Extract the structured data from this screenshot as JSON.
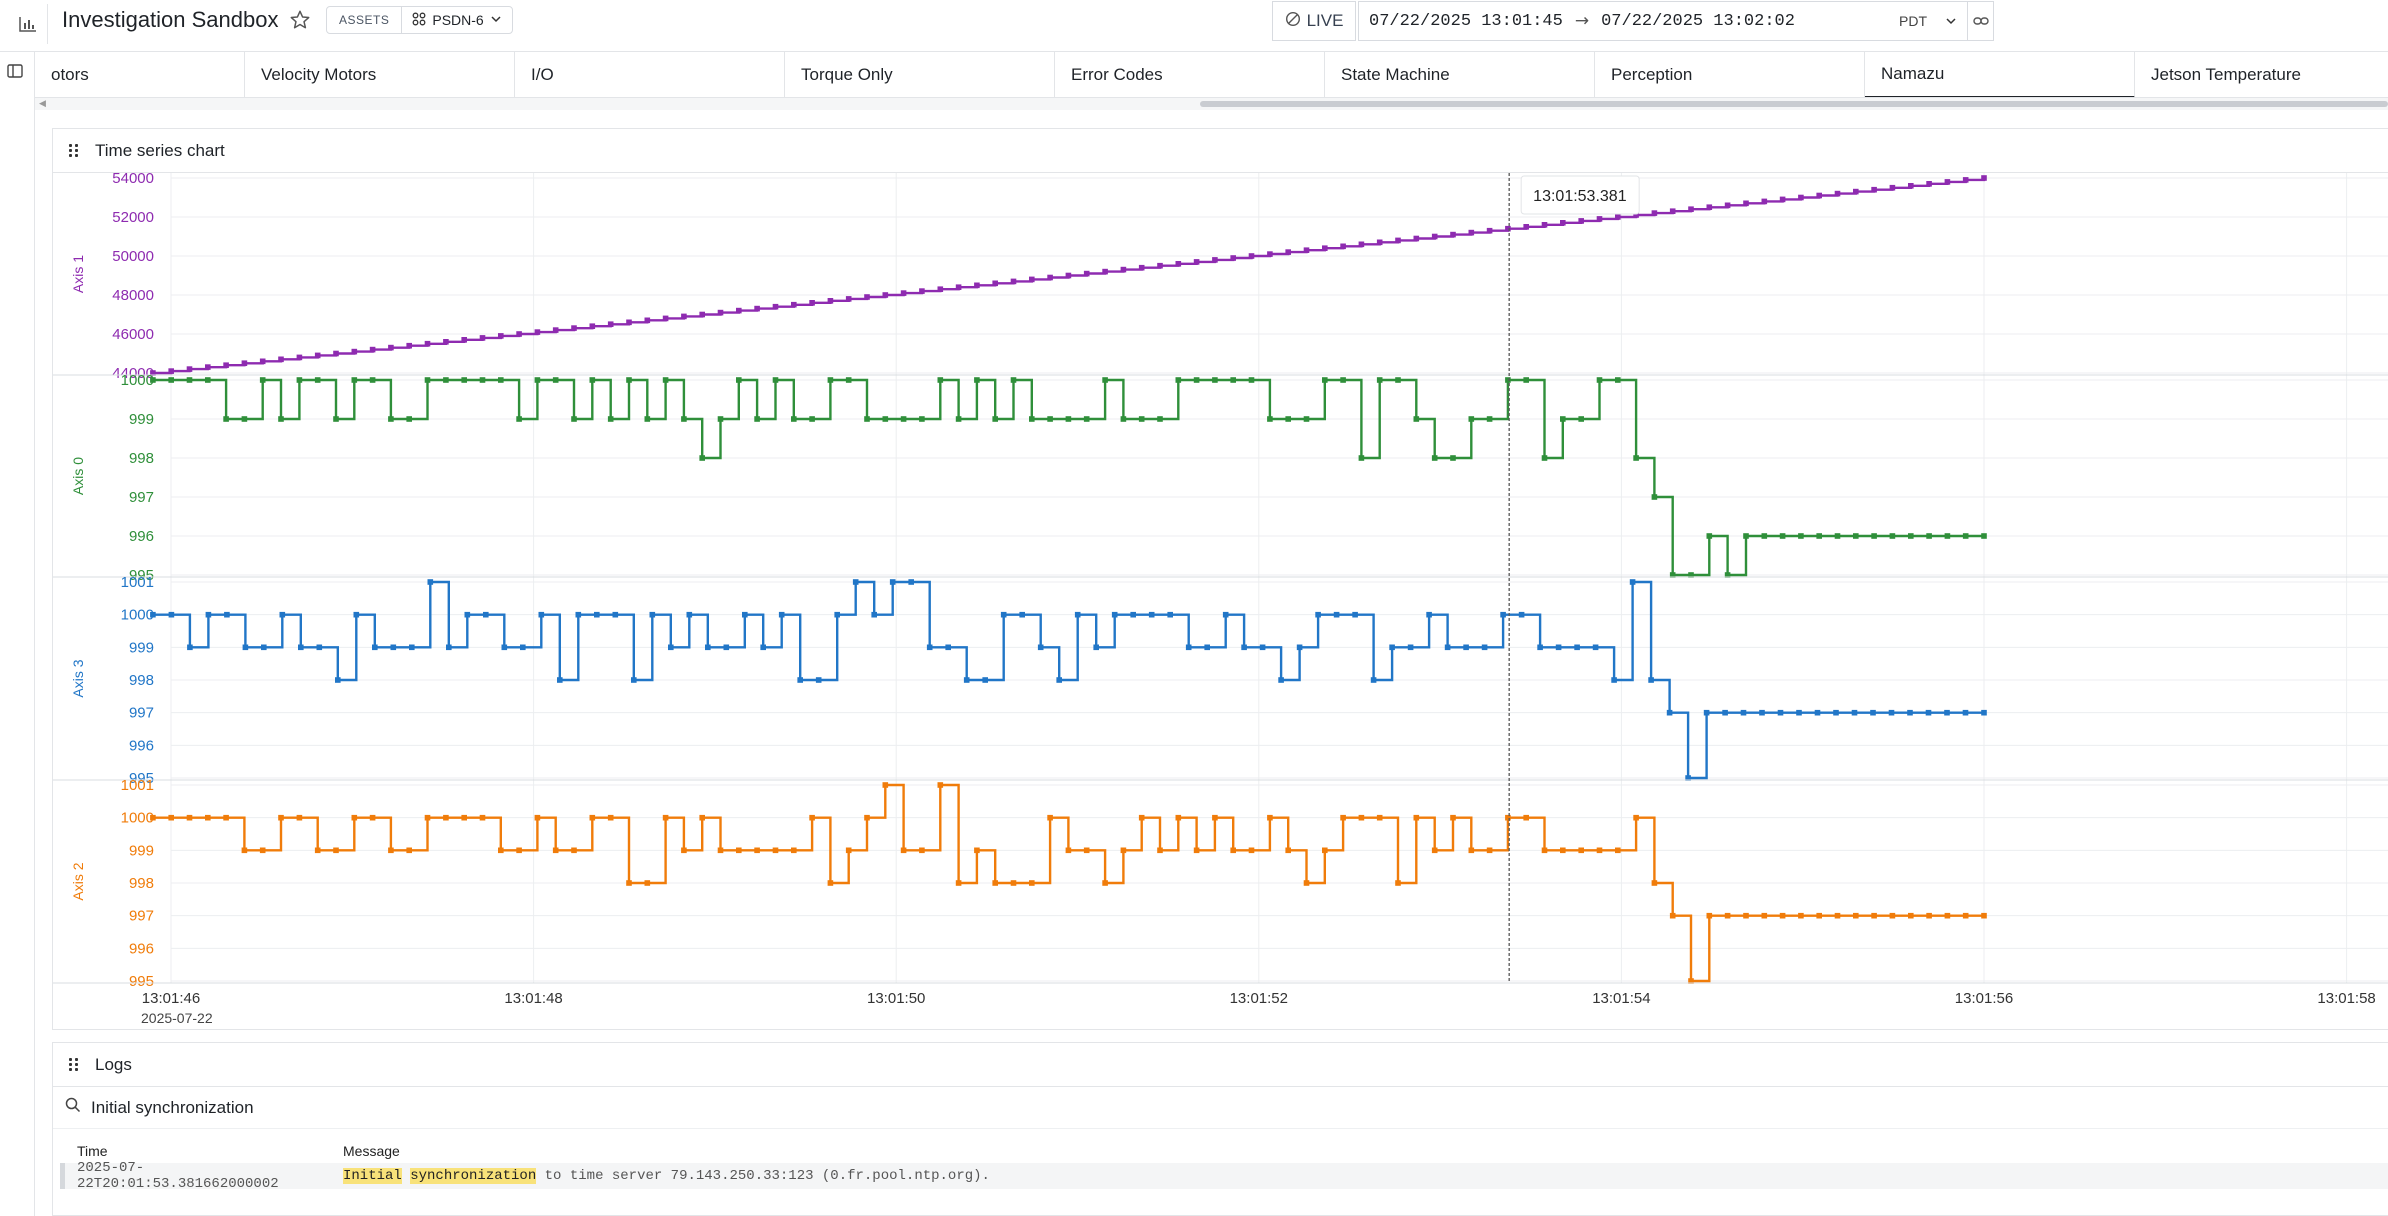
{
  "header": {
    "title": "Investigation Sandbox",
    "assets_label": "ASSETS",
    "asset_value": "PSDN-6",
    "live_label": "LIVE",
    "range_start": "07/22/2025 13:01:45",
    "range_end": "07/22/2025 13:02:02",
    "timezone": "PDT"
  },
  "tabs": [
    {
      "label": "otors"
    },
    {
      "label": "Velocity Motors"
    },
    {
      "label": "I/O"
    },
    {
      "label": "Torque Only"
    },
    {
      "label": "Error Codes"
    },
    {
      "label": "State Machine"
    },
    {
      "label": "Perception"
    },
    {
      "label": "Namazu",
      "active": true
    },
    {
      "label": "Jetson Temperature"
    }
  ],
  "chart_panel": {
    "title": "Time series chart"
  },
  "logs": {
    "title": "Logs",
    "search_value": "Initial synchronization",
    "columns": [
      "Time",
      "Message"
    ],
    "rows": [
      {
        "time": "2025-07-22T20:01:53.381662000002",
        "highlight1": "Initial",
        "highlight2": "synchronization",
        "message_rest": "to time server 79.143.250.33:123 (0.fr.pool.ntp.org)."
      }
    ]
  },
  "colors": {
    "axis1": "#8e2bb0",
    "axis0": "#2f8f3a",
    "axis3": "#2176c7",
    "axis2": "#f07c0a",
    "cursor": "#555555",
    "highlight": "#f8e27a"
  },
  "chart_data": {
    "type": "line",
    "step": true,
    "x_axis": {
      "ticks": [
        "13:01:46",
        "13:01:48",
        "13:01:50",
        "13:01:52",
        "13:01:54",
        "13:01:56",
        "13:01:58"
      ],
      "tick_seconds": [
        46,
        48,
        50,
        52,
        54,
        56,
        58
      ],
      "date_label": "2025-07-22",
      "range_seconds": [
        45.94,
        58.2
      ],
      "data_range_seconds": [
        45.9,
        56.0
      ]
    },
    "cursor": {
      "label": "13:01:53.381",
      "seconds": 53.381
    },
    "grid": true,
    "series": [
      {
        "name": "Axis 1",
        "color": "#8e2bb0",
        "ylim": [
          44000,
          54000
        ],
        "yticks": [
          44000,
          46000,
          48000,
          50000,
          52000,
          54000
        ],
        "kind": "linear",
        "start": 44000,
        "end": 54000,
        "points": 101
      },
      {
        "name": "Axis 0",
        "color": "#2f8f3a",
        "ylim": [
          995,
          1000
        ],
        "yticks": [
          995,
          996,
          997,
          998,
          999,
          1000
        ],
        "values": [
          1000,
          1000,
          1000,
          1000,
          999,
          999,
          1000,
          999,
          1000,
          1000,
          999,
          1000,
          1000,
          999,
          999,
          1000,
          1000,
          1000,
          1000,
          1000,
          999,
          1000,
          1000,
          999,
          1000,
          999,
          1000,
          999,
          1000,
          999,
          998,
          999,
          1000,
          999,
          1000,
          999,
          999,
          1000,
          1000,
          999,
          999,
          999,
          999,
          1000,
          999,
          1000,
          999,
          1000,
          999,
          999,
          999,
          999,
          1000,
          999,
          999,
          999,
          1000,
          1000,
          1000,
          1000,
          1000,
          999,
          999,
          999,
          1000,
          1000,
          998,
          1000,
          1000,
          999,
          998,
          998,
          999,
          999,
          1000,
          1000,
          998,
          999,
          999,
          1000,
          1000,
          998,
          997,
          995,
          995,
          996,
          995,
          996,
          996,
          996,
          996,
          996,
          996,
          996,
          996,
          996,
          996,
          996,
          996,
          996,
          996
        ]
      },
      {
        "name": "Axis 3",
        "color": "#2176c7",
        "ylim": [
          995,
          1001
        ],
        "yticks": [
          995,
          996,
          997,
          998,
          999,
          1000,
          1001
        ],
        "values": [
          1000,
          1000,
          999,
          1000,
          1000,
          999,
          999,
          1000,
          999,
          999,
          998,
          1000,
          999,
          999,
          999,
          1001,
          999,
          1000,
          1000,
          999,
          999,
          1000,
          998,
          1000,
          1000,
          1000,
          998,
          1000,
          999,
          1000,
          999,
          999,
          1000,
          999,
          1000,
          998,
          998,
          1000,
          1001,
          1000,
          1001,
          1001,
          999,
          999,
          998,
          998,
          1000,
          1000,
          999,
          998,
          1000,
          999,
          1000,
          1000,
          1000,
          1000,
          999,
          999,
          1000,
          999,
          999,
          998,
          999,
          1000,
          1000,
          1000,
          998,
          999,
          999,
          1000,
          999,
          999,
          999,
          1000,
          1000,
          999,
          999,
          999,
          999,
          998,
          1001,
          998,
          997,
          995,
          997,
          997,
          997,
          997,
          997,
          997,
          997,
          997,
          997,
          997,
          997,
          997,
          997,
          997,
          997,
          997
        ]
      },
      {
        "name": "Axis 2",
        "color": "#f07c0a",
        "ylim": [
          995,
          1001
        ],
        "yticks": [
          995,
          996,
          997,
          998,
          999,
          1000,
          1001
        ],
        "values": [
          1000,
          1000,
          1000,
          1000,
          1000,
          999,
          999,
          1000,
          1000,
          999,
          999,
          1000,
          1000,
          999,
          999,
          1000,
          1000,
          1000,
          1000,
          999,
          999,
          1000,
          999,
          999,
          1000,
          1000,
          998,
          998,
          1000,
          999,
          1000,
          999,
          999,
          999,
          999,
          999,
          1000,
          998,
          999,
          1000,
          1001,
          999,
          999,
          1001,
          998,
          999,
          998,
          998,
          998,
          1000,
          999,
          999,
          998,
          999,
          1000,
          999,
          1000,
          999,
          1000,
          999,
          999,
          1000,
          999,
          998,
          999,
          1000,
          1000,
          1000,
          998,
          1000,
          999,
          1000,
          999,
          999,
          1000,
          1000,
          999,
          999,
          999,
          999,
          999,
          1000,
          998,
          997,
          995,
          997,
          997,
          997,
          997,
          997,
          997,
          997,
          997,
          997,
          997,
          997,
          997,
          997,
          997,
          997,
          997
        ]
      }
    ]
  }
}
